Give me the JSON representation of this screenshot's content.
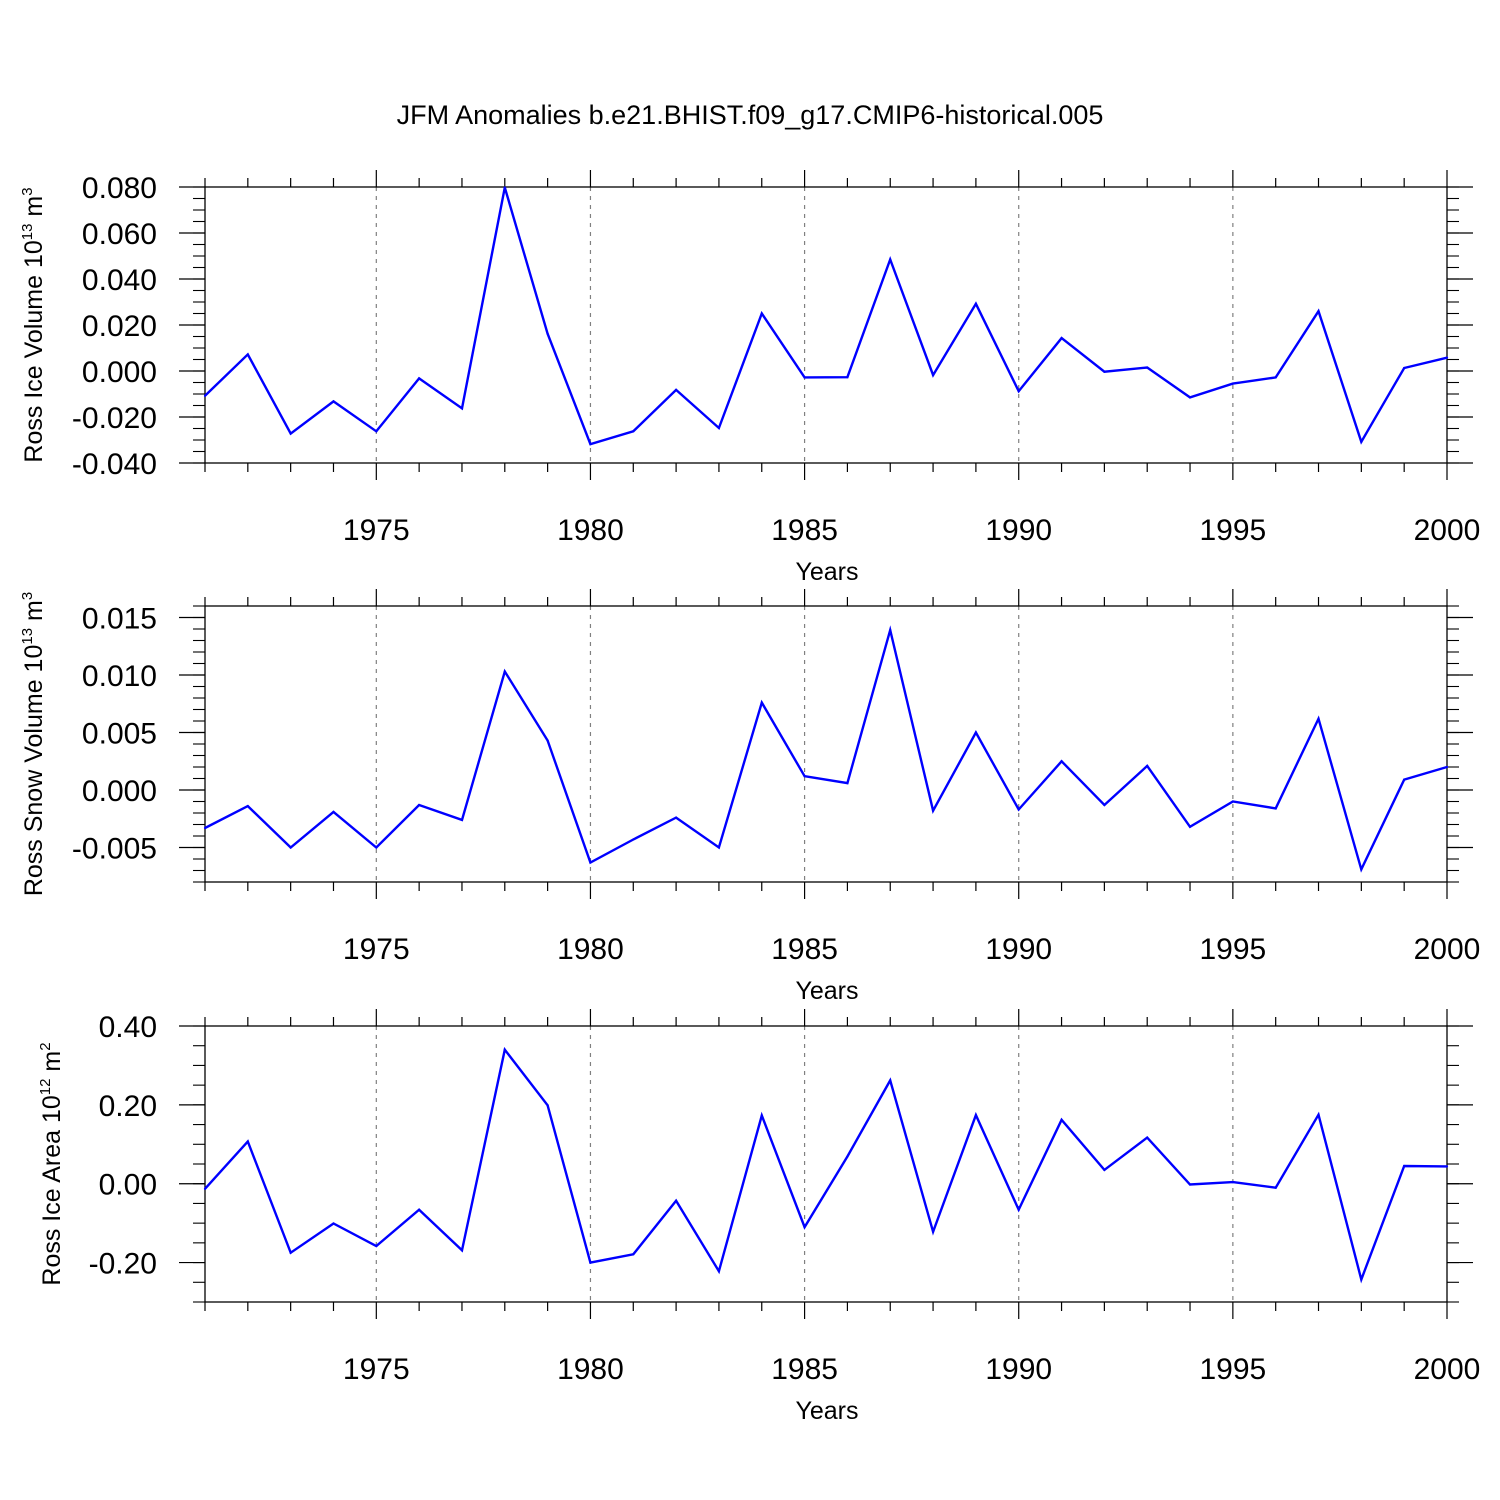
{
  "figure_title": "JFM Anomalies b.e21.BHIST.f09_g17.CMIP6-historical.005",
  "colors": {
    "line": "#0000ff",
    "axis": "#000000",
    "grid": "#808080",
    "background": "#ffffff"
  },
  "chart_data": [
    {
      "type": "line",
      "xlabel": "Years",
      "ylabel": {
        "text": "Ross Ice Volume 10",
        "sup": "13",
        "tail": " m",
        "sup2": "3"
      },
      "xlim": [
        1971,
        2000
      ],
      "ylim": [
        -0.04,
        0.08
      ],
      "x_ticks": [
        1975,
        1980,
        1985,
        1990,
        1995,
        2000
      ],
      "x_tick_labels": [
        "1975",
        "1980",
        "1985",
        "1990",
        "1995",
        "2000"
      ],
      "y_ticks": [
        -0.04,
        -0.02,
        0.0,
        0.02,
        0.04,
        0.06,
        0.08
      ],
      "y_tick_labels": [
        "-0.040",
        "-0.020",
        "0.000",
        "0.020",
        "0.040",
        "0.060",
        "0.080"
      ],
      "y_minor_step": 0.005,
      "grid_x": true,
      "series": [
        {
          "name": "Ross Ice Volume",
          "x": [
            1971,
            1972,
            1973,
            1974,
            1975,
            1976,
            1977,
            1978,
            1979,
            1980,
            1981,
            1982,
            1983,
            1984,
            1985,
            1986,
            1987,
            1988,
            1989,
            1990,
            1991,
            1992,
            1993,
            1994,
            1995,
            1996,
            1997,
            1998,
            1999,
            2000
          ],
          "values": [
            -0.0108,
            0.0072,
            -0.0272,
            -0.0132,
            -0.0262,
            -0.0032,
            -0.0162,
            0.0798,
            0.0162,
            -0.0318,
            -0.0262,
            -0.0082,
            -0.0248,
            0.025,
            -0.0028,
            -0.0027,
            0.0485,
            -0.0018,
            0.0292,
            -0.0088,
            0.0143,
            -0.0003,
            0.0015,
            -0.0115,
            -0.0055,
            -0.0028,
            0.026,
            -0.0308,
            0.0013,
            0.0058
          ]
        }
      ]
    },
    {
      "type": "line",
      "xlabel": "Years",
      "ylabel": {
        "text": "Ross Snow Volume 10",
        "sup": "13",
        "tail": " m",
        "sup2": "3"
      },
      "xlim": [
        1971,
        2000
      ],
      "ylim": [
        -0.008,
        0.016
      ],
      "x_ticks": [
        1975,
        1980,
        1985,
        1990,
        1995,
        2000
      ],
      "x_tick_labels": [
        "1975",
        "1980",
        "1985",
        "1990",
        "1995",
        "2000"
      ],
      "y_ticks": [
        -0.005,
        0.0,
        0.005,
        0.01,
        0.015
      ],
      "y_tick_labels": [
        "-0.005",
        "0.000",
        "0.005",
        "0.010",
        "0.015"
      ],
      "y_minor_step": 0.001,
      "grid_x": true,
      "series": [
        {
          "name": "Ross Snow Volume",
          "x": [
            1971,
            1972,
            1973,
            1974,
            1975,
            1976,
            1977,
            1978,
            1979,
            1980,
            1981,
            1982,
            1983,
            1984,
            1985,
            1986,
            1987,
            1988,
            1989,
            1990,
            1991,
            1992,
            1993,
            1994,
            1995,
            1996,
            1997,
            1998,
            1999,
            2000
          ],
          "values": [
            -0.0033,
            -0.0014,
            -0.005,
            -0.0019,
            -0.005,
            -0.0013,
            -0.0026,
            0.0103,
            0.0043,
            -0.0063,
            -0.0043,
            -0.0024,
            -0.005,
            0.0076,
            0.0012,
            0.0006,
            0.0139,
            -0.0018,
            0.005,
            -0.0017,
            0.0025,
            -0.0013,
            0.0021,
            -0.0032,
            -0.001,
            -0.0016,
            0.0062,
            -0.0069,
            0.0009,
            0.002
          ]
        }
      ]
    },
    {
      "type": "line",
      "xlabel": "Years",
      "ylabel": {
        "text": "Ross Ice Area 10",
        "sup": "12",
        "tail": " m",
        "sup2": "2"
      },
      "xlim": [
        1971,
        2000
      ],
      "ylim": [
        -0.3,
        0.4
      ],
      "x_ticks": [
        1975,
        1980,
        1985,
        1990,
        1995,
        2000
      ],
      "x_tick_labels": [
        "1975",
        "1980",
        "1985",
        "1990",
        "1995",
        "2000"
      ],
      "y_ticks": [
        -0.2,
        0.0,
        0.2,
        0.4
      ],
      "y_tick_labels": [
        "-0.20",
        "0.00",
        "0.20",
        "0.40"
      ],
      "y_minor_step": 0.05,
      "grid_x": true,
      "series": [
        {
          "name": "Ross Ice Area",
          "x": [
            1971,
            1972,
            1973,
            1974,
            1975,
            1976,
            1977,
            1978,
            1979,
            1980,
            1981,
            1982,
            1983,
            1984,
            1985,
            1986,
            1987,
            1988,
            1989,
            1990,
            1991,
            1992,
            1993,
            1994,
            1995,
            1996,
            1997,
            1998,
            1999,
            2000
          ],
          "values": [
            -0.013,
            0.107,
            -0.175,
            -0.101,
            -0.158,
            -0.066,
            -0.169,
            0.34,
            0.199,
            -0.2,
            -0.179,
            -0.043,
            -0.222,
            0.173,
            -0.11,
            0.069,
            0.262,
            -0.122,
            0.174,
            -0.066,
            0.162,
            0.035,
            0.117,
            -0.002,
            0.004,
            -0.01,
            0.175,
            -0.243,
            0.045,
            0.044
          ]
        }
      ]
    }
  ]
}
